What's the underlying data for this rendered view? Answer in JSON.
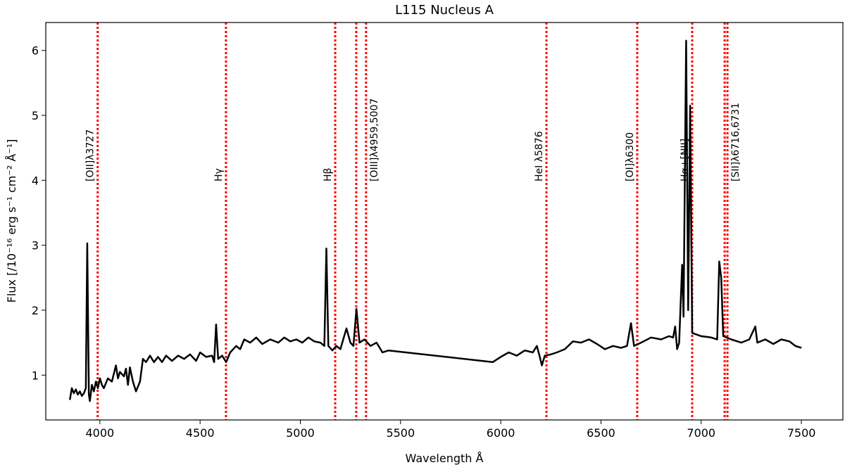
{
  "chart_data": {
    "type": "line",
    "title": "L115 Nucleus A",
    "x_label": "Wavelength Å",
    "y_label": "Flux  [/10⁻¹⁶ erg s⁻¹ cm⁻² Å⁻¹]",
    "xlim": [
      3730,
      7707
    ],
    "ylim": [
      0.31,
      6.43
    ],
    "xticks": [
      4000,
      4500,
      5000,
      5500,
      6000,
      6500,
      7000,
      7500
    ],
    "yticks": [
      1,
      2,
      3,
      4,
      5,
      6
    ],
    "line_color": "#000000",
    "annotation_color": "#ff0000",
    "annotations": [
      {
        "x": 3989,
        "label": "[OII]λ3727"
      },
      {
        "x": 4629,
        "label": "Hγ"
      },
      {
        "x": 5174,
        "label": "Hβ"
      },
      {
        "x": 5279
      },
      {
        "x": 5328,
        "label": "[OIII]λ4959,5007"
      },
      {
        "x": 6228,
        "label": "HeI λ5876"
      },
      {
        "x": 6681,
        "label": "[OI]λ6300"
      },
      {
        "x": 6955,
        "label": "Hα+[NII]"
      },
      {
        "x": 7117
      },
      {
        "x": 7131,
        "label": "[SII]λ6716,6731"
      }
    ],
    "x": [
      3850,
      3860,
      3870,
      3880,
      3890,
      3900,
      3910,
      3920,
      3930,
      3937,
      3945,
      3950,
      3960,
      3970,
      3980,
      3990,
      4000,
      4010,
      4020,
      4040,
      4060,
      4080,
      4090,
      4100,
      4120,
      4130,
      4140,
      4150,
      4165,
      4180,
      4200,
      4215,
      4230,
      4250,
      4270,
      4290,
      4310,
      4330,
      4360,
      4390,
      4420,
      4450,
      4480,
      4500,
      4530,
      4560,
      4570,
      4580,
      4590,
      4610,
      4630,
      4650,
      4680,
      4700,
      4720,
      4750,
      4780,
      4810,
      4850,
      4890,
      4920,
      4950,
      4980,
      5010,
      5040,
      5070,
      5100,
      5120,
      5130,
      5140,
      5160,
      5180,
      5200,
      5230,
      5250,
      5265,
      5280,
      5295,
      5320,
      5350,
      5380,
      5410,
      5440,
      5960,
      6000,
      6040,
      6080,
      6120,
      6160,
      6180,
      6195,
      6205,
      6220,
      6250,
      6280,
      6320,
      6360,
      6400,
      6440,
      6480,
      6520,
      6560,
      6600,
      6630,
      6650,
      6665,
      6700,
      6750,
      6800,
      6840,
      6860,
      6870,
      6880,
      6890,
      6905,
      6912,
      6925,
      6935,
      6945,
      6955,
      7000,
      7050,
      7080,
      7090,
      7100,
      7110,
      7150,
      7200,
      7240,
      7270,
      7280,
      7320,
      7360,
      7400,
      7440,
      7470,
      7500
    ],
    "values": [
      0.62,
      0.8,
      0.72,
      0.78,
      0.7,
      0.75,
      0.68,
      0.72,
      0.8,
      3.03,
      0.7,
      0.6,
      0.85,
      0.75,
      0.9,
      0.8,
      0.95,
      0.85,
      0.8,
      0.95,
      0.9,
      1.15,
      0.95,
      1.05,
      0.98,
      1.1,
      0.85,
      1.12,
      0.9,
      0.75,
      0.9,
      1.25,
      1.2,
      1.3,
      1.2,
      1.28,
      1.2,
      1.3,
      1.22,
      1.3,
      1.25,
      1.32,
      1.22,
      1.35,
      1.28,
      1.3,
      1.2,
      1.78,
      1.25,
      1.3,
      1.2,
      1.35,
      1.45,
      1.4,
      1.55,
      1.5,
      1.58,
      1.48,
      1.55,
      1.5,
      1.58,
      1.52,
      1.55,
      1.5,
      1.58,
      1.52,
      1.5,
      1.45,
      2.95,
      1.45,
      1.38,
      1.45,
      1.4,
      1.72,
      1.5,
      1.45,
      2.02,
      1.5,
      1.55,
      1.45,
      1.5,
      1.35,
      1.38,
      1.2,
      1.28,
      1.35,
      1.3,
      1.38,
      1.35,
      1.45,
      1.28,
      1.15,
      1.3,
      1.32,
      1.35,
      1.4,
      1.52,
      1.5,
      1.55,
      1.48,
      1.4,
      1.45,
      1.42,
      1.45,
      1.8,
      1.45,
      1.5,
      1.58,
      1.55,
      1.6,
      1.58,
      1.75,
      1.4,
      1.5,
      2.7,
      1.9,
      6.15,
      2.0,
      5.15,
      1.65,
      1.6,
      1.58,
      1.55,
      2.75,
      2.5,
      1.6,
      1.55,
      1.5,
      1.55,
      1.75,
      1.5,
      1.55,
      1.48,
      1.55,
      1.52,
      1.45,
      1.42
    ]
  }
}
